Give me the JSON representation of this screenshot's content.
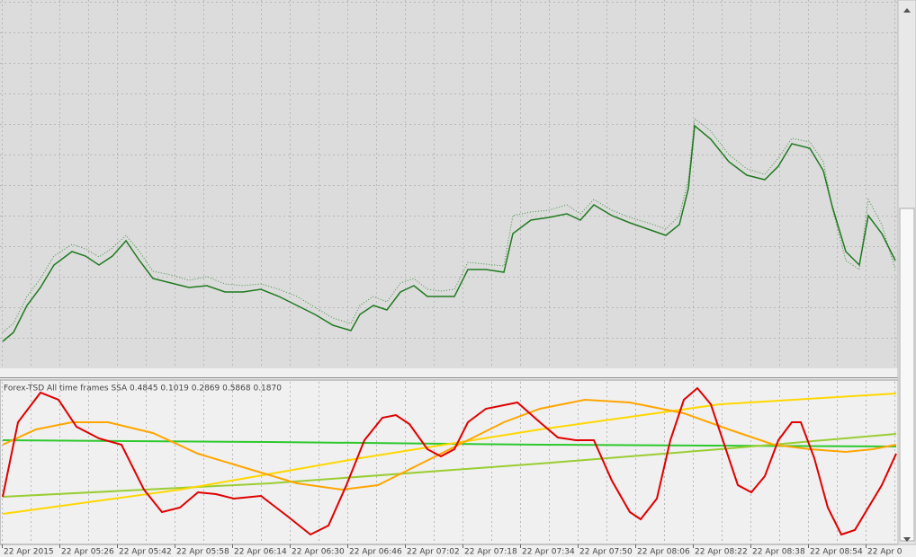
{
  "indicator": {
    "label": "Forex-TSD All time frames SSA 0.4845 0.1019 0.2869 0.5868 0.1870"
  },
  "time_axis": {
    "labels": [
      "22 Apr 2015",
      "22 Apr 05:26",
      "22 Apr 05:42",
      "22 Apr 05:58",
      "22 Apr 06:14",
      "22 Apr 06:30",
      "22 Apr 06:46",
      "22 Apr 07:02",
      "22 Apr 07:18",
      "22 Apr 07:34",
      "22 Apr 07:50",
      "22 Apr 08:06",
      "22 Apr 08:22",
      "22 Apr 08:38",
      "22 Apr 08:54",
      "22 Apr 0"
    ]
  }
}
